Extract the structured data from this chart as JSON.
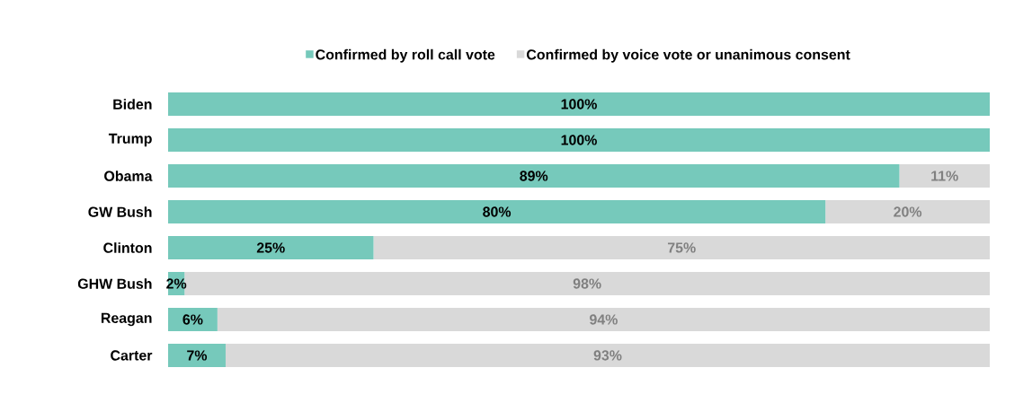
{
  "chart_data": {
    "type": "bar",
    "orientation": "horizontal",
    "stacked": true,
    "categories": [
      "Biden",
      "Trump",
      "Obama",
      "GW Bush",
      "Clinton",
      "GHW Bush",
      "Reagan",
      "Carter"
    ],
    "series": [
      {
        "name": "Confirmed by roll call vote",
        "color": "#76c9bb",
        "values": [
          100,
          100,
          89,
          80,
          25,
          2,
          6,
          7
        ],
        "value_labels": [
          "100%",
          "100%",
          "89%",
          "80%",
          "25%",
          "2%",
          "6%",
          "7%"
        ]
      },
      {
        "name": "Confirmed by voice vote or unanimous consent",
        "color": "#d9d9d9",
        "values": [
          0,
          0,
          11,
          20,
          75,
          98,
          94,
          93
        ],
        "value_labels": [
          null,
          null,
          "11%",
          "20%",
          "75%",
          "98%",
          "94%",
          "93%"
        ]
      }
    ],
    "xlim": [
      0,
      100
    ],
    "tick_labels": "y",
    "legend": "top"
  }
}
